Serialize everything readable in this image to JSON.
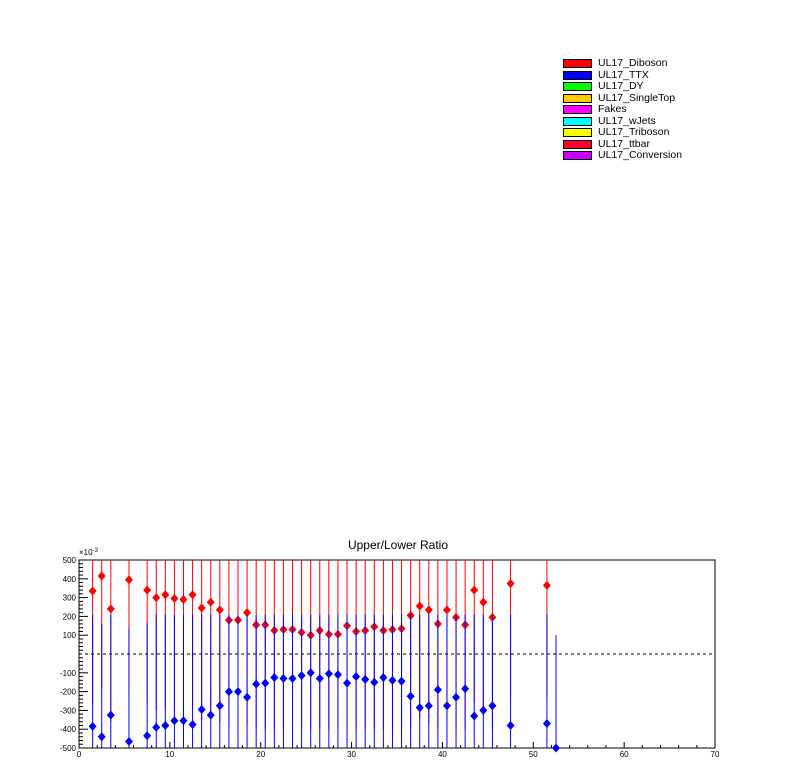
{
  "legend": [
    {
      "label": "UL17_Diboson",
      "color": "#ff0000"
    },
    {
      "label": "UL17_TTX",
      "color": "#0000ff"
    },
    {
      "label": "UL17_DY",
      "color": "#00ff00"
    },
    {
      "label": "UL17_SingleTop",
      "color": "#ffcc00"
    },
    {
      "label": "Fakes",
      "color": "#ff00ff"
    },
    {
      "label": "UL17_wJets",
      "color": "#00ffff"
    },
    {
      "label": "UL17_Triboson",
      "color": "#ffff00"
    },
    {
      "label": "UL17_ttbar",
      "color": "#ff0033"
    },
    {
      "label": "UL17_Conversion",
      "color": "#cc00ff"
    }
  ],
  "chart_data": {
    "type": "scatter",
    "title": "Upper/Lower Ratio",
    "xlabel": "",
    "ylabel": "",
    "y_exponent_label": "×10",
    "y_exponent_power": "-3",
    "xlim": [
      0,
      70
    ],
    "ylim": [
      -500,
      500
    ],
    "x_ticks": [
      "0",
      "10",
      "20",
      "30",
      "40",
      "50",
      "60",
      "70"
    ],
    "y_ticks": [
      "-500",
      "-400",
      "-300",
      "-200",
      "-100",
      "100",
      "200",
      "300",
      "400",
      "500"
    ],
    "reference_line": 0,
    "series": [
      {
        "color": "#ff0000",
        "x": [
          1.5,
          2.5,
          3.5,
          5.5,
          7.5,
          8.5,
          9.5,
          10.5,
          11.5,
          12.5,
          13.5,
          14.5,
          15.5,
          16.5,
          17.5,
          18.5,
          19.5,
          20.5,
          21.5,
          22.5,
          23.5,
          24.5,
          25.5,
          26.5,
          27.5,
          28.5,
          29.5,
          30.5,
          31.5,
          32.5,
          33.5,
          34.5,
          35.5,
          36.5,
          37.5,
          38.5,
          39.5,
          40.5,
          41.5,
          42.5,
          43.5,
          44.5,
          45.5,
          47.5,
          51.5
        ],
        "y": [
          335,
          415,
          240,
          395,
          340,
          300,
          315,
          295,
          290,
          315,
          245,
          275,
          235,
          180,
          180,
          220,
          155,
          155,
          125,
          130,
          130,
          115,
          100,
          125,
          105,
          105,
          150,
          120,
          125,
          145,
          125,
          130,
          135,
          205,
          255,
          235,
          160,
          235,
          195,
          155,
          340,
          275,
          195,
          375,
          365
        ]
      },
      {
        "color": "#0000ff",
        "x": [
          1.5,
          2.5,
          3.5,
          5.5,
          7.5,
          8.5,
          9.5,
          10.5,
          11.5,
          12.5,
          13.5,
          14.5,
          15.5,
          16.5,
          17.5,
          18.5,
          19.5,
          20.5,
          21.5,
          22.5,
          23.5,
          24.5,
          25.5,
          26.5,
          27.5,
          28.5,
          29.5,
          30.5,
          31.5,
          32.5,
          33.5,
          34.5,
          35.5,
          36.5,
          37.5,
          38.5,
          39.5,
          40.5,
          41.5,
          42.5,
          43.5,
          44.5,
          45.5,
          47.5,
          51.5,
          52.5
        ],
        "y": [
          -385,
          -440,
          -325,
          -465,
          -435,
          -390,
          -380,
          -355,
          -355,
          -375,
          -295,
          -325,
          -275,
          -200,
          -200,
          -230,
          -160,
          -155,
          -125,
          -130,
          -130,
          -115,
          -100,
          -130,
          -105,
          -110,
          -155,
          -120,
          -135,
          -150,
          -125,
          -140,
          -145,
          -225,
          -285,
          -275,
          -190,
          -275,
          -230,
          -185,
          -330,
          -300,
          -275,
          -380,
          -370,
          -500
        ]
      }
    ]
  }
}
